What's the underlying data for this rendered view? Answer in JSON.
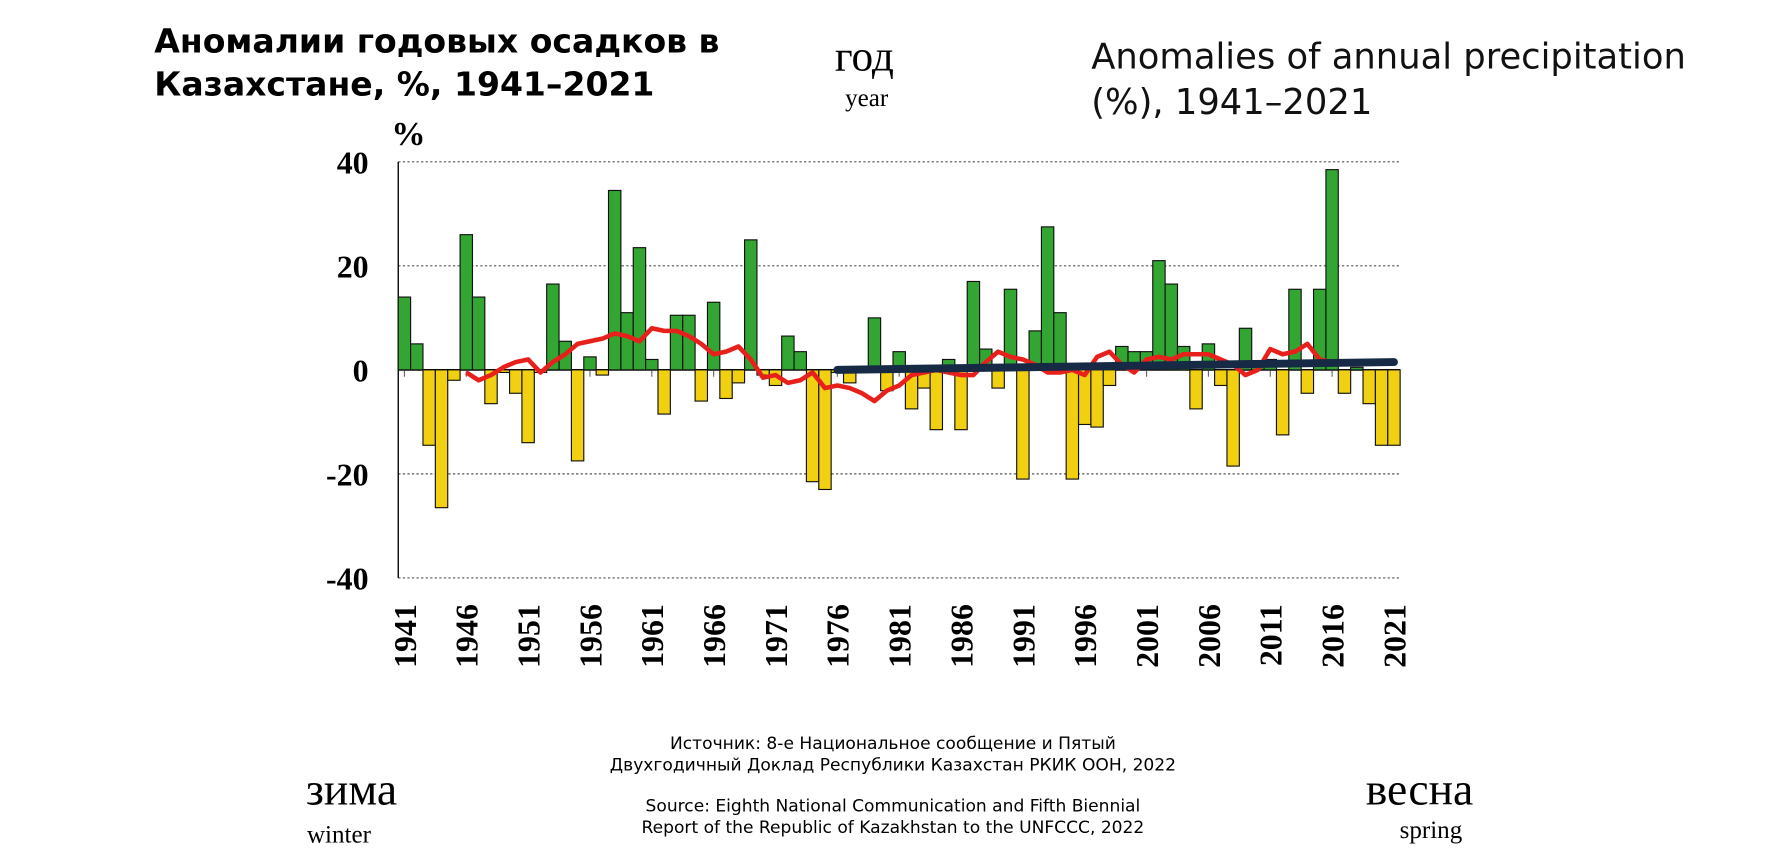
{
  "chart_data": {
    "type": "bar",
    "title": [
      "Аномалии годовых осадков в",
      "Казахстане, %, 1941–2021"
    ],
    "subtitle": [
      "Anomalies of annual precipitation",
      "(%), 1941–2021"
    ],
    "y_label": "%",
    "season_labels": [
      {
        "ru": "год",
        "en": "year"
      },
      {
        "ru": "зима",
        "en": "winter"
      },
      {
        "ru": "весна",
        "en": "spring"
      }
    ],
    "source": [
      "Источник: 8-е Национальное сообщение и Пятый",
      "Двухгодичный Доклад Республики Казахстан РКИК ООН, 2022",
      "Source: Eighth National Communication and Fifth Biennial",
      "Report of the Republic of Kazakhstan to the UNFCCC, 2022"
    ],
    "x": [
      1941,
      1942,
      1943,
      1944,
      1945,
      1946,
      1947,
      1948,
      1949,
      1950,
      1951,
      1952,
      1953,
      1954,
      1955,
      1956,
      1957,
      1958,
      1959,
      1960,
      1961,
      1962,
      1963,
      1964,
      1965,
      1966,
      1967,
      1968,
      1969,
      1970,
      1971,
      1972,
      1973,
      1974,
      1975,
      1976,
      1977,
      1978,
      1979,
      1980,
      1981,
      1982,
      1983,
      1984,
      1985,
      1986,
      1987,
      1988,
      1989,
      1990,
      1991,
      1992,
      1993,
      1994,
      1995,
      1996,
      1997,
      1998,
      1999,
      2000,
      2001,
      2002,
      2003,
      2004,
      2005,
      2006,
      2007,
      2008,
      2009,
      2010,
      2011,
      2012,
      2013,
      2014,
      2015,
      2016,
      2017,
      2018,
      2019,
      2020,
      2021
    ],
    "values": [
      14,
      5,
      -14.5,
      -26.5,
      -2,
      26,
      14,
      -6.5,
      -0.5,
      -4.5,
      -14,
      -0.5,
      16.5,
      5.5,
      -17.5,
      2.5,
      -1,
      34.5,
      11,
      23.5,
      2,
      -8.5,
      10.5,
      10.5,
      -6,
      13,
      -5.5,
      -2.5,
      25,
      -1,
      -3,
      6.5,
      3.5,
      -21.5,
      -23,
      -0.5,
      -2.5,
      0,
      10,
      -4,
      3.5,
      -7.5,
      -3.5,
      -11.5,
      2,
      -11.5,
      17,
      4,
      -3.5,
      15.5,
      -21,
      7.5,
      27.5,
      11,
      -21,
      -10.5,
      -11,
      -3,
      4.5,
      3.5,
      3.5,
      21,
      16.5,
      4.5,
      -7.5,
      5,
      -3,
      -18.5,
      8,
      1,
      2,
      -12.5,
      15.5,
      -4.5,
      15.5,
      38.5,
      -4.5,
      0.5,
      -6.5,
      -14.5,
      -14.5
    ],
    "colors": {
      "positive": "#33a532",
      "negative": "#f0d010"
    },
    "moving_average": {
      "color": "#e8201c",
      "values": [
        null,
        null,
        null,
        null,
        null,
        -0.5,
        -2,
        -1,
        0.5,
        1.5,
        2,
        -0.5,
        1.5,
        3,
        5,
        5.5,
        6,
        7,
        6.5,
        5.5,
        8,
        7.5,
        7.5,
        6.5,
        5,
        3,
        3.5,
        4.5,
        2,
        -1.5,
        -1,
        -2.5,
        -2,
        -0.5,
        -3.5,
        -3,
        -3.5,
        -4.5,
        -6,
        -4,
        -3,
        -1,
        -0.5,
        0,
        -0.5,
        -1,
        -1,
        1.5,
        3.5,
        2.5,
        2,
        1,
        -0.5,
        -0.5,
        0,
        -1,
        2.5,
        3.5,
        1,
        -0.5,
        2,
        2.5,
        2,
        3,
        3,
        3,
        2,
        1,
        -1,
        0,
        4,
        3,
        3.5,
        5,
        2,
        1.5,
        null,
        null,
        null,
        null,
        null
      ]
    },
    "trend": {
      "color": "#172a45",
      "x": [
        1976,
        2021
      ],
      "values": [
        0,
        1.5
      ]
    },
    "xlim": [
      1940.5,
      2021.5
    ],
    "xticks": [
      1941,
      1946,
      1951,
      1956,
      1961,
      1966,
      1971,
      1976,
      1981,
      1986,
      1991,
      1996,
      2001,
      2006,
      2011,
      2016,
      2021
    ],
    "ylim": [
      -40,
      40
    ],
    "yticks": [
      -40,
      -20,
      0,
      20,
      40
    ],
    "grid": true
  }
}
